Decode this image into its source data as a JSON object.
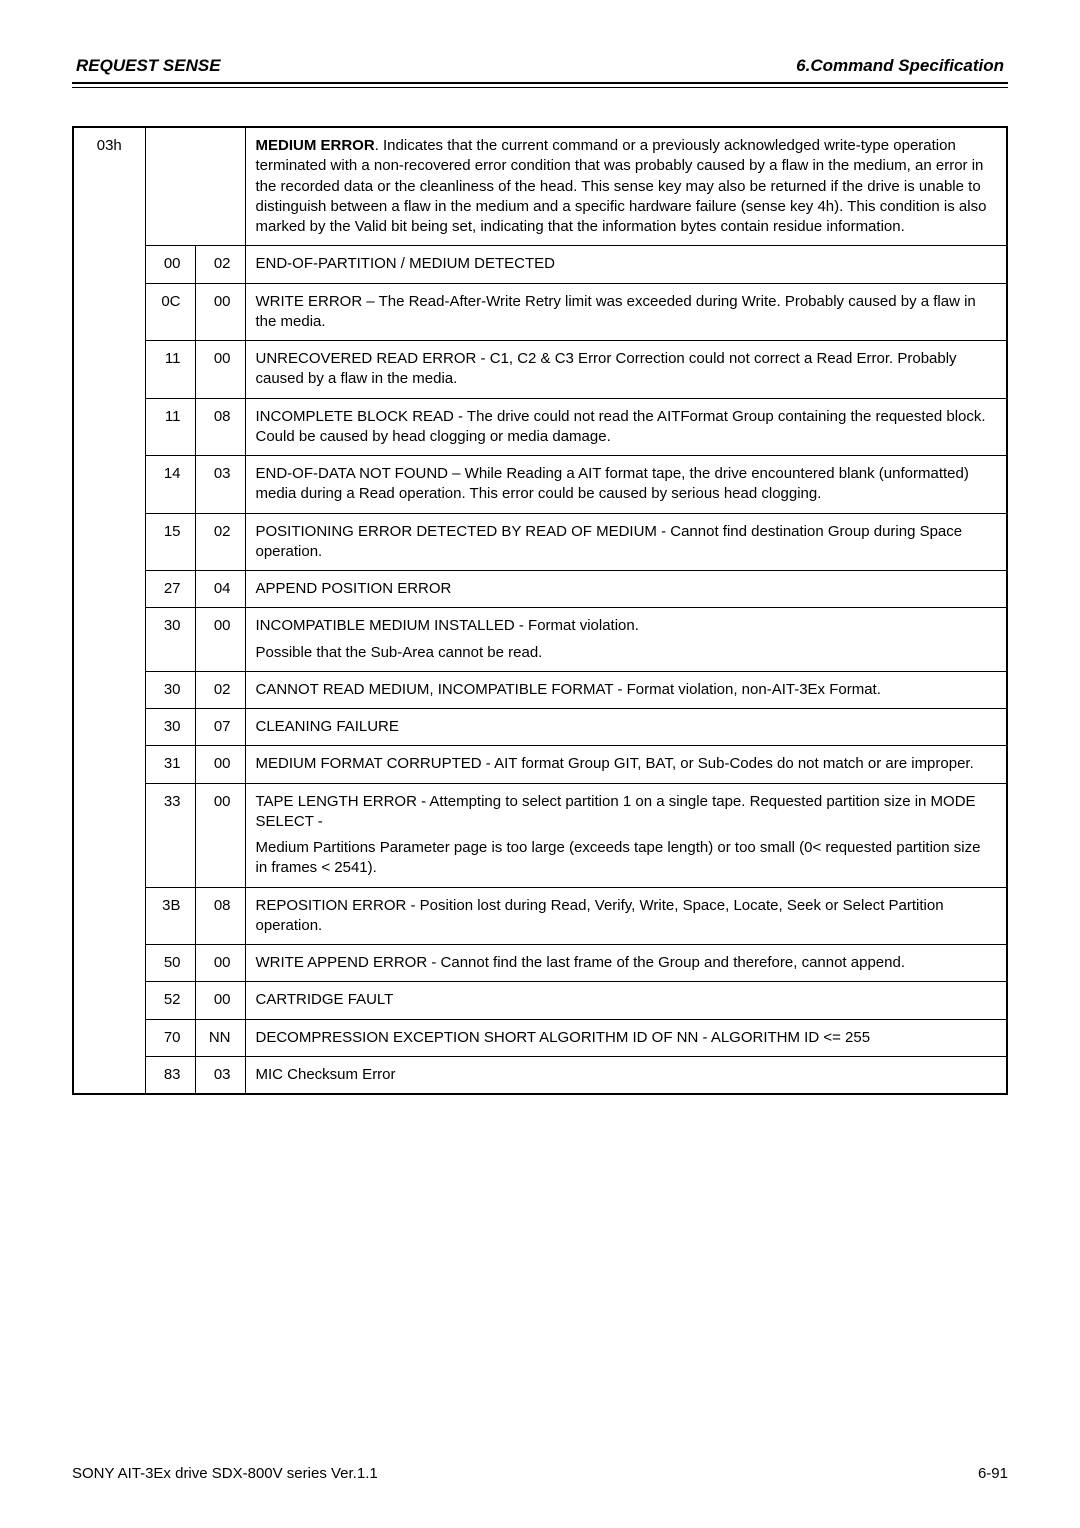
{
  "header": {
    "left": "REQUEST SENSE",
    "right": "6.Command Specification"
  },
  "senseKey": "03h",
  "preamble": {
    "boldLead": "MEDIUM ERROR",
    "rest": ". Indicates that the current command or a previously acknowledged write-type operation terminated with a non-recovered error condition that was probably caused by a flaw in the medium, an error in the recorded data or the cleanliness of the head. This sense key may also be returned if the drive is unable to distinguish between a flaw in the medium and a specific hardware failure (sense key 4h). This condition is also marked by the Valid bit being set, indicating that the information bytes contain residue information."
  },
  "rows": [
    {
      "asc": "00",
      "ascq": "02",
      "desc": [
        "END-OF-PARTITION / MEDIUM DETECTED"
      ]
    },
    {
      "asc": "0C",
      "ascq": "00",
      "desc": [
        "WRITE ERROR – The Read-After-Write Retry limit was exceeded during Write. Probably caused by a flaw in the media."
      ]
    },
    {
      "asc": "11",
      "ascq": "00",
      "desc": [
        "UNRECOVERED READ ERROR - C1, C2 & C3 Error Correction could not correct a Read Error. Probably caused by a flaw in the media."
      ]
    },
    {
      "asc": "11",
      "ascq": "08",
      "desc": [
        "INCOMPLETE BLOCK READ - The drive could not read the AITFormat Group containing the requested block.  Could be caused by head clogging or media damage."
      ]
    },
    {
      "asc": "14",
      "ascq": "03",
      "desc": [
        "END-OF-DATA NOT FOUND – While Reading a AIT format tape, the drive encountered blank (unformatted) media during a Read operation. This error could be caused by serious head clogging."
      ]
    },
    {
      "asc": "15",
      "ascq": "02",
      "desc": [
        "POSITIONING ERROR DETECTED BY READ OF MEDIUM - Cannot find destination Group during Space operation."
      ]
    },
    {
      "asc": "27",
      "ascq": "04",
      "desc": [
        "APPEND POSITION ERROR"
      ]
    },
    {
      "asc": "30",
      "ascq": "00",
      "desc": [
        "INCOMPATIBLE MEDIUM INSTALLED - Format violation.",
        "Possible that the Sub-Area cannot be read."
      ]
    },
    {
      "asc": "30",
      "ascq": "02",
      "desc": [
        "CANNOT READ MEDIUM, INCOMPATIBLE FORMAT - Format violation, non-AIT-3Ex Format."
      ]
    },
    {
      "asc": "30",
      "ascq": "07",
      "desc": [
        "CLEANING FAILURE"
      ]
    },
    {
      "asc": "31",
      "ascq": "00",
      "desc": [
        "MEDIUM FORMAT CORRUPTED - AIT format Group GIT, BAT, or Sub-Codes do not match or are improper."
      ]
    },
    {
      "asc": "33",
      "ascq": "00",
      "desc": [
        "TAPE LENGTH ERROR - Attempting to select partition 1 on a single tape. Requested partition size in MODE SELECT -",
        "Medium Partitions Parameter page is too large (exceeds tape length) or too small (0< requested partition size in frames < 2541)."
      ]
    },
    {
      "asc": "3B",
      "ascq": "08",
      "desc": [
        "REPOSITION ERROR - Position lost during Read, Verify, Write, Space, Locate, Seek or Select Partition operation."
      ]
    },
    {
      "asc": "50",
      "ascq": "00",
      "desc": [
        "WRITE APPEND ERROR - Cannot find the last frame of the Group and therefore, cannot append."
      ]
    },
    {
      "asc": "52",
      "ascq": "00",
      "desc": [
        "CARTRIDGE FAULT"
      ]
    },
    {
      "asc": "70",
      "ascq": "NN",
      "desc": [
        "DECOMPRESSION EXCEPTION SHORT ALGORITHM ID OF NN - ALGORITHM ID <= 255"
      ]
    },
    {
      "asc": "83",
      "ascq": "03",
      "desc": [
        "MIC Checksum Error"
      ]
    }
  ],
  "footer": {
    "left": "SONY AIT-3Ex drive SDX-800V series Ver.1.1",
    "right": "6-91"
  },
  "style": {
    "background": "#ffffff",
    "text": "#000000",
    "ruleThick": 2.5,
    "ruleThin": 1,
    "bodyFontSize": 15,
    "headerFontSize": 17
  }
}
